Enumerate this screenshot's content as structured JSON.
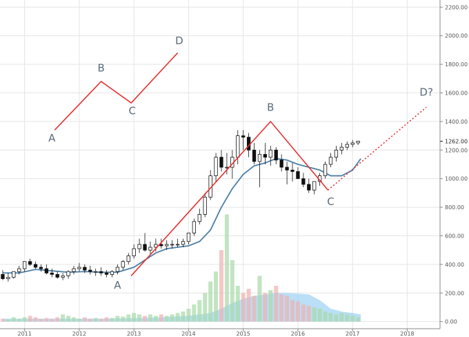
{
  "chart_data": {
    "type": "candlestick",
    "title": "",
    "xlabel": "",
    "ylabel": "",
    "ylim": [
      -50,
      2250
    ],
    "xlim": [
      2010.55,
      2018.6
    ],
    "grid": true,
    "y_ticks": [
      {
        "value": 0,
        "label": "0.00"
      },
      {
        "value": 200,
        "label": "200.00"
      },
      {
        "value": 400,
        "label": "400.00"
      },
      {
        "value": 600,
        "label": "600.00"
      },
      {
        "value": 800,
        "label": "800.00"
      },
      {
        "value": 1000,
        "label": "1000.00"
      },
      {
        "value": 1200,
        "label": "1200.00"
      },
      {
        "value": 1400,
        "label": "1400.00"
      },
      {
        "value": 1600,
        "label": "1600.00"
      },
      {
        "value": 1800,
        "label": "1800.00"
      },
      {
        "value": 2000,
        "label": "2000.00"
      },
      {
        "value": 2200,
        "label": "2200.00"
      }
    ],
    "x_ticks": [
      {
        "value": 2011,
        "label": "2011"
      },
      {
        "value": 2012,
        "label": "2012"
      },
      {
        "value": 2013,
        "label": "2013"
      },
      {
        "value": 2014,
        "label": "2014"
      },
      {
        "value": 2015,
        "label": "2015"
      },
      {
        "value": 2016,
        "label": "2016"
      },
      {
        "value": 2017,
        "label": "2017"
      },
      {
        "value": 2018,
        "label": "2018"
      }
    ],
    "last_price": {
      "value": 1262,
      "label": "1262.00"
    },
    "colors": {
      "wave": "#e53030",
      "moving_average": "#4a7fa8",
      "candle": "#111111",
      "volume_up": "#a8d8a8",
      "volume_down": "#f0b0b0",
      "volume_area": "#8ccaf0",
      "grid": "#e4e4e4"
    },
    "series": [
      {
        "kind": "candles",
        "x": [
          2010.6,
          2010.7,
          2010.8,
          2010.9,
          2011.0,
          2011.1,
          2011.2,
          2011.3,
          2011.4,
          2011.5,
          2011.6,
          2011.7,
          2011.8,
          2011.9,
          2012.0,
          2012.1,
          2012.2,
          2012.3,
          2012.4,
          2012.5,
          2012.6,
          2012.7,
          2012.8,
          2012.9,
          2013.0,
          2013.1,
          2013.2,
          2013.3,
          2013.4,
          2013.5,
          2013.6,
          2013.7,
          2013.8,
          2013.9,
          2014.0,
          2014.1,
          2014.2,
          2014.3,
          2014.4,
          2014.5,
          2014.6,
          2014.7,
          2014.8,
          2014.9,
          2015.0,
          2015.1,
          2015.2,
          2015.3,
          2015.4,
          2015.5,
          2015.6,
          2015.7,
          2015.8,
          2015.9,
          2016.0,
          2016.1,
          2016.2,
          2016.3,
          2016.4,
          2016.5,
          2016.6,
          2016.7,
          2016.8,
          2016.9,
          2017.0,
          2017.1
        ],
        "open": [
          330,
          300,
          310,
          350,
          370,
          420,
          400,
          380,
          370,
          340,
          330,
          310,
          320,
          350,
          370,
          380,
          360,
          350,
          350,
          340,
          330,
          350,
          380,
          420,
          460,
          510,
          540,
          500,
          520,
          540,
          530,
          540,
          540,
          540,
          560,
          620,
          700,
          750,
          870,
          1020,
          1150,
          1080,
          1080,
          1150,
          1300,
          1290,
          1200,
          1120,
          1170,
          1150,
          1200,
          1130,
          1080,
          1060,
          1050,
          1000,
          960,
          920,
          980,
          1020,
          1100,
          1150,
          1200,
          1220,
          1240,
          1250
        ],
        "high": [
          360,
          340,
          350,
          390,
          420,
          440,
          420,
          400,
          400,
          370,
          350,
          340,
          360,
          390,
          410,
          400,
          390,
          370,
          380,
          360,
          360,
          400,
          430,
          480,
          540,
          580,
          620,
          560,
          580,
          580,
          570,
          570,
          580,
          580,
          620,
          720,
          790,
          900,
          1060,
          1180,
          1200,
          1180,
          1200,
          1340,
          1340,
          1320,
          1250,
          1200,
          1250,
          1230,
          1220,
          1170,
          1120,
          1110,
          1080,
          1040,
          1000,
          980,
          1040,
          1120,
          1180,
          1230,
          1250,
          1260,
          1270,
          1265
        ],
        "low": [
          290,
          280,
          300,
          330,
          350,
          390,
          370,
          350,
          330,
          310,
          300,
          290,
          300,
          330,
          350,
          340,
          330,
          320,
          320,
          310,
          310,
          330,
          360,
          400,
          440,
          480,
          490,
          470,
          490,
          510,
          500,
          510,
          520,
          520,
          540,
          600,
          680,
          730,
          850,
          980,
          1050,
          1030,
          1000,
          1100,
          1200,
          1150,
          1100,
          940,
          1100,
          1090,
          1100,
          1050,
          960,
          980,
          1000,
          940,
          900,
          890,
          950,
          1000,
          1080,
          1120,
          1170,
          1200,
          1220,
          1235
        ],
        "close": [
          300,
          310,
          350,
          370,
          420,
          400,
          380,
          370,
          340,
          330,
          310,
          320,
          350,
          370,
          380,
          360,
          350,
          350,
          340,
          330,
          350,
          380,
          420,
          460,
          510,
          540,
          500,
          520,
          540,
          530,
          540,
          540,
          540,
          560,
          620,
          700,
          750,
          870,
          1020,
          1150,
          1080,
          1080,
          1150,
          1300,
          1290,
          1200,
          1120,
          1170,
          1150,
          1200,
          1130,
          1080,
          1060,
          1050,
          1000,
          960,
          920,
          980,
          1020,
          1100,
          1150,
          1200,
          1220,
          1240,
          1250,
          1262
        ]
      },
      {
        "kind": "moving_average",
        "x": [
          2010.6,
          2010.9,
          2011.2,
          2011.5,
          2011.8,
          2012.1,
          2012.4,
          2012.7,
          2013.0,
          2013.2,
          2013.4,
          2013.6,
          2013.8,
          2014.0,
          2014.2,
          2014.4,
          2014.6,
          2014.8,
          2015.0,
          2015.2,
          2015.4,
          2015.6,
          2015.8,
          2016.0,
          2016.2,
          2016.4,
          2016.6,
          2016.8,
          2017.0,
          2017.15
        ],
        "y": [
          340,
          340,
          365,
          355,
          345,
          350,
          345,
          345,
          380,
          430,
          480,
          510,
          520,
          530,
          560,
          640,
          800,
          930,
          1030,
          1090,
          1110,
          1140,
          1130,
          1100,
          1080,
          1060,
          1020,
          1020,
          1060,
          1140
        ]
      },
      {
        "kind": "volume",
        "x": [
          2010.6,
          2010.7,
          2010.8,
          2010.9,
          2011.0,
          2011.1,
          2011.2,
          2011.3,
          2011.4,
          2011.5,
          2011.6,
          2011.7,
          2011.8,
          2011.9,
          2012.0,
          2012.1,
          2012.2,
          2012.3,
          2012.4,
          2012.5,
          2012.6,
          2012.7,
          2012.8,
          2012.9,
          2013.0,
          2013.1,
          2013.2,
          2013.3,
          2013.4,
          2013.5,
          2013.6,
          2013.7,
          2013.8,
          2013.9,
          2014.0,
          2014.1,
          2014.2,
          2014.3,
          2014.4,
          2014.5,
          2014.6,
          2014.7,
          2014.8,
          2014.9,
          2015.0,
          2015.1,
          2015.2,
          2015.3,
          2015.4,
          2015.5,
          2015.6,
          2015.7,
          2015.8,
          2015.9,
          2016.0,
          2016.1,
          2016.2,
          2016.3,
          2016.4,
          2016.5,
          2016.6,
          2016.7,
          2016.8,
          2016.9,
          2017.0,
          2017.1
        ],
        "values": [
          20,
          15,
          30,
          20,
          30,
          40,
          30,
          20,
          25,
          20,
          30,
          50,
          40,
          30,
          20,
          30,
          20,
          25,
          20,
          30,
          25,
          40,
          35,
          50,
          60,
          50,
          40,
          50,
          40,
          50,
          40,
          50,
          60,
          70,
          90,
          120,
          150,
          200,
          280,
          350,
          500,
          750,
          430,
          250,
          200,
          230,
          180,
          320,
          200,
          220,
          250,
          190,
          180,
          150,
          140,
          120,
          110,
          100,
          90,
          70,
          60,
          50,
          60,
          50,
          40,
          30
        ],
        "up": [
          false,
          true,
          true,
          true,
          true,
          false,
          false,
          false,
          false,
          false,
          false,
          true,
          true,
          true,
          true,
          false,
          false,
          true,
          false,
          false,
          true,
          true,
          true,
          true,
          true,
          true,
          false,
          true,
          true,
          false,
          true,
          true,
          true,
          true,
          true,
          true,
          true,
          true,
          true,
          true,
          false,
          true,
          true,
          true,
          false,
          false,
          false,
          true,
          false,
          true,
          false,
          false,
          false,
          false,
          false,
          false,
          false,
          true,
          true,
          true,
          true,
          true,
          true,
          true,
          true,
          true
        ]
      },
      {
        "kind": "volume_area",
        "x": [
          2010.6,
          2011.0,
          2011.5,
          2012.0,
          2012.5,
          2013.0,
          2013.5,
          2014.0,
          2014.4,
          2014.6,
          2014.8,
          2015.0,
          2015.2,
          2015.4,
          2015.6,
          2015.8,
          2016.0,
          2016.2,
          2016.4,
          2016.6,
          2016.8,
          2017.0,
          2017.15
        ],
        "y": [
          20,
          20,
          20,
          20,
          20,
          25,
          30,
          40,
          60,
          90,
          130,
          160,
          180,
          190,
          200,
          200,
          195,
          190,
          150,
          90,
          70,
          60,
          50
        ]
      }
    ],
    "annotations": [
      {
        "kind": "wave",
        "points": [
          [
            2011.55,
            1340
          ],
          [
            2012.4,
            1680
          ],
          [
            2012.95,
            1530
          ],
          [
            2013.8,
            1880
          ]
        ],
        "labels": [
          {
            "text": "A",
            "x": 2011.5,
            "y": 1260
          },
          {
            "text": "B",
            "x": 2012.4,
            "y": 1750
          },
          {
            "text": "C",
            "x": 2012.97,
            "y": 1450
          },
          {
            "text": "D",
            "x": 2013.83,
            "y": 1940
          }
        ]
      },
      {
        "kind": "wave",
        "points": [
          [
            2012.95,
            320
          ],
          [
            2015.5,
            1400
          ],
          [
            2016.55,
            920
          ]
        ],
        "labels": [
          {
            "text": "A",
            "x": 2012.7,
            "y": 230
          },
          {
            "text": "B",
            "x": 2015.5,
            "y": 1475
          },
          {
            "text": "C",
            "x": 2016.6,
            "y": 815
          }
        ]
      },
      {
        "kind": "projection",
        "points": [
          [
            2016.55,
            920
          ],
          [
            2018.35,
            1500
          ]
        ],
        "labels": [
          {
            "text": "D?",
            "x": 2018.35,
            "y": 1580
          }
        ]
      }
    ]
  }
}
